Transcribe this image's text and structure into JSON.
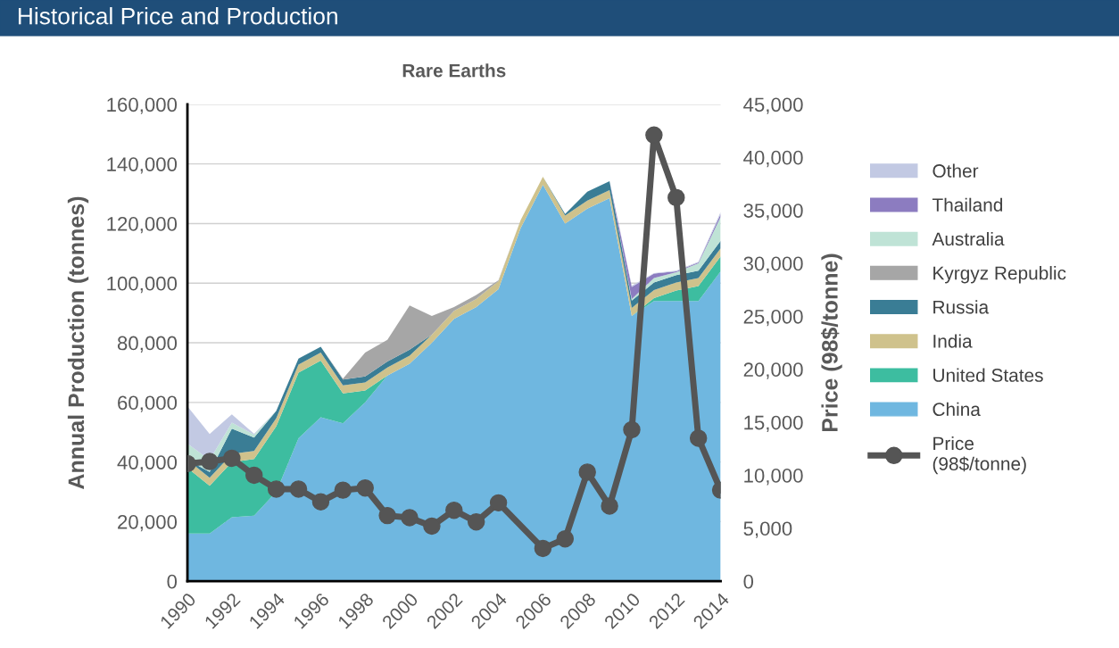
{
  "chart_data": {
    "type": "area",
    "stacked": true,
    "title": "Historical Price and Production",
    "subtitle": "Rare Earths",
    "ylabel": "Annual Production (tonnes)",
    "y2label": "Price (98$/tonne)",
    "x": [
      1990,
      1991,
      1992,
      1993,
      1994,
      1995,
      1996,
      1997,
      1998,
      1999,
      2000,
      2001,
      2002,
      2003,
      2004,
      2005,
      2006,
      2007,
      2008,
      2009,
      2010,
      2011,
      2012,
      2013,
      2014
    ],
    "xlim": [
      1990,
      2014
    ],
    "xticks": [
      1990,
      1992,
      1994,
      1996,
      1998,
      2000,
      2002,
      2004,
      2006,
      2008,
      2010,
      2012,
      2014
    ],
    "ylim": [
      0,
      160000
    ],
    "yticks": [
      {
        "value": 0,
        "label": "0"
      },
      {
        "value": 20000,
        "label": "20,000"
      },
      {
        "value": 40000,
        "label": "40,000"
      },
      {
        "value": 60000,
        "label": "60,000"
      },
      {
        "value": 80000,
        "label": "80,000"
      },
      {
        "value": 100000,
        "label": "100,000"
      },
      {
        "value": 120000,
        "label": "120,000"
      },
      {
        "value": 140000,
        "label": "140,000"
      },
      {
        "value": 160000,
        "label": "160,000"
      }
    ],
    "y2lim": [
      0,
      45000
    ],
    "y2ticks": [
      {
        "value": 0,
        "label": "0"
      },
      {
        "value": 5000,
        "label": "5,000"
      },
      {
        "value": 10000,
        "label": "10,000"
      },
      {
        "value": 15000,
        "label": "15,000"
      },
      {
        "value": 20000,
        "label": "20,000"
      },
      {
        "value": 25000,
        "label": "25,000"
      },
      {
        "value": 30000,
        "label": "30,000"
      },
      {
        "value": 35000,
        "label": "35,000"
      },
      {
        "value": 40000,
        "label": "40,000"
      },
      {
        "value": 45000,
        "label": "45,000"
      }
    ],
    "grid": "y",
    "legend": "right",
    "series": [
      {
        "name": "China",
        "color": "#6fb7e0",
        "values": [
          16000,
          16000,
          21500,
          22000,
          30000,
          48000,
          55000,
          53000,
          60000,
          69000,
          73000,
          80000,
          88000,
          92000,
          98000,
          118500,
          133000,
          120000,
          125000,
          128500,
          89000,
          94000,
          94000,
          94000,
          104000
        ]
      },
      {
        "name": "United States",
        "color": "#3dbda0",
        "values": [
          22000,
          16000,
          18500,
          19000,
          22000,
          22000,
          19000,
          10000,
          4000,
          0,
          null,
          null,
          null,
          null,
          null,
          null,
          null,
          null,
          null,
          null,
          0,
          1000,
          3500,
          5000,
          5000
        ]
      },
      {
        "name": "India",
        "color": "#cfc28c",
        "values": [
          2700,
          2700,
          2700,
          2700,
          2700,
          2700,
          2700,
          2700,
          2700,
          2700,
          2700,
          2700,
          2700,
          2700,
          2700,
          2700,
          2700,
          2700,
          2700,
          2700,
          2700,
          2700,
          2700,
          2700,
          2700
        ]
      },
      {
        "name": "Russia",
        "color": "#3a7d95",
        "values": [
          0,
          2000,
          8500,
          4500,
          2500,
          2000,
          2000,
          2000,
          2000,
          2000,
          2000,
          0,
          null,
          null,
          null,
          null,
          0,
          500,
          3000,
          3000,
          2500,
          2500,
          2500,
          2500,
          2500
        ]
      },
      {
        "name": "Kyrgyz Republic",
        "color": "#a6a6a6",
        "values": [
          null,
          null,
          null,
          null,
          null,
          null,
          0,
          300,
          8000,
          7300,
          14800,
          6300,
          1300,
          1300,
          300,
          0,
          null,
          null,
          null,
          null,
          null,
          null,
          null,
          null,
          null
        ]
      },
      {
        "name": "Australia",
        "color": "#bfe3d6",
        "values": [
          5500,
          4000,
          2000,
          1000,
          0,
          null,
          null,
          null,
          null,
          null,
          null,
          null,
          null,
          null,
          null,
          null,
          null,
          null,
          null,
          0,
          500,
          1500,
          1000,
          2500,
          8000
        ]
      },
      {
        "name": "Thailand",
        "color": "#8c7cc0",
        "values": [
          null,
          null,
          null,
          null,
          null,
          null,
          null,
          null,
          null,
          null,
          null,
          null,
          null,
          null,
          null,
          null,
          null,
          null,
          null,
          0,
          4000,
          1500,
          300,
          300,
          1000
        ]
      },
      {
        "name": "Other",
        "color": "#c2c9e3",
        "values": [
          12500,
          8700,
          2800,
          300,
          0,
          null,
          null,
          null,
          null,
          null,
          null,
          null,
          null,
          null,
          null,
          null,
          null,
          null,
          null,
          0,
          500,
          200,
          200,
          200,
          700
        ]
      },
      {
        "name": "Price\n(98$/tonne)",
        "type": "line",
        "axis": "y2",
        "color": "#555555",
        "marker": "circle",
        "values": [
          11100,
          11300,
          11600,
          10000,
          8700,
          8700,
          7500,
          8600,
          8800,
          6200,
          6000,
          5200,
          6700,
          5600,
          7400,
          null,
          3100,
          4000,
          10300,
          7100,
          14300,
          42100,
          36200,
          13500,
          8600
        ]
      }
    ]
  }
}
